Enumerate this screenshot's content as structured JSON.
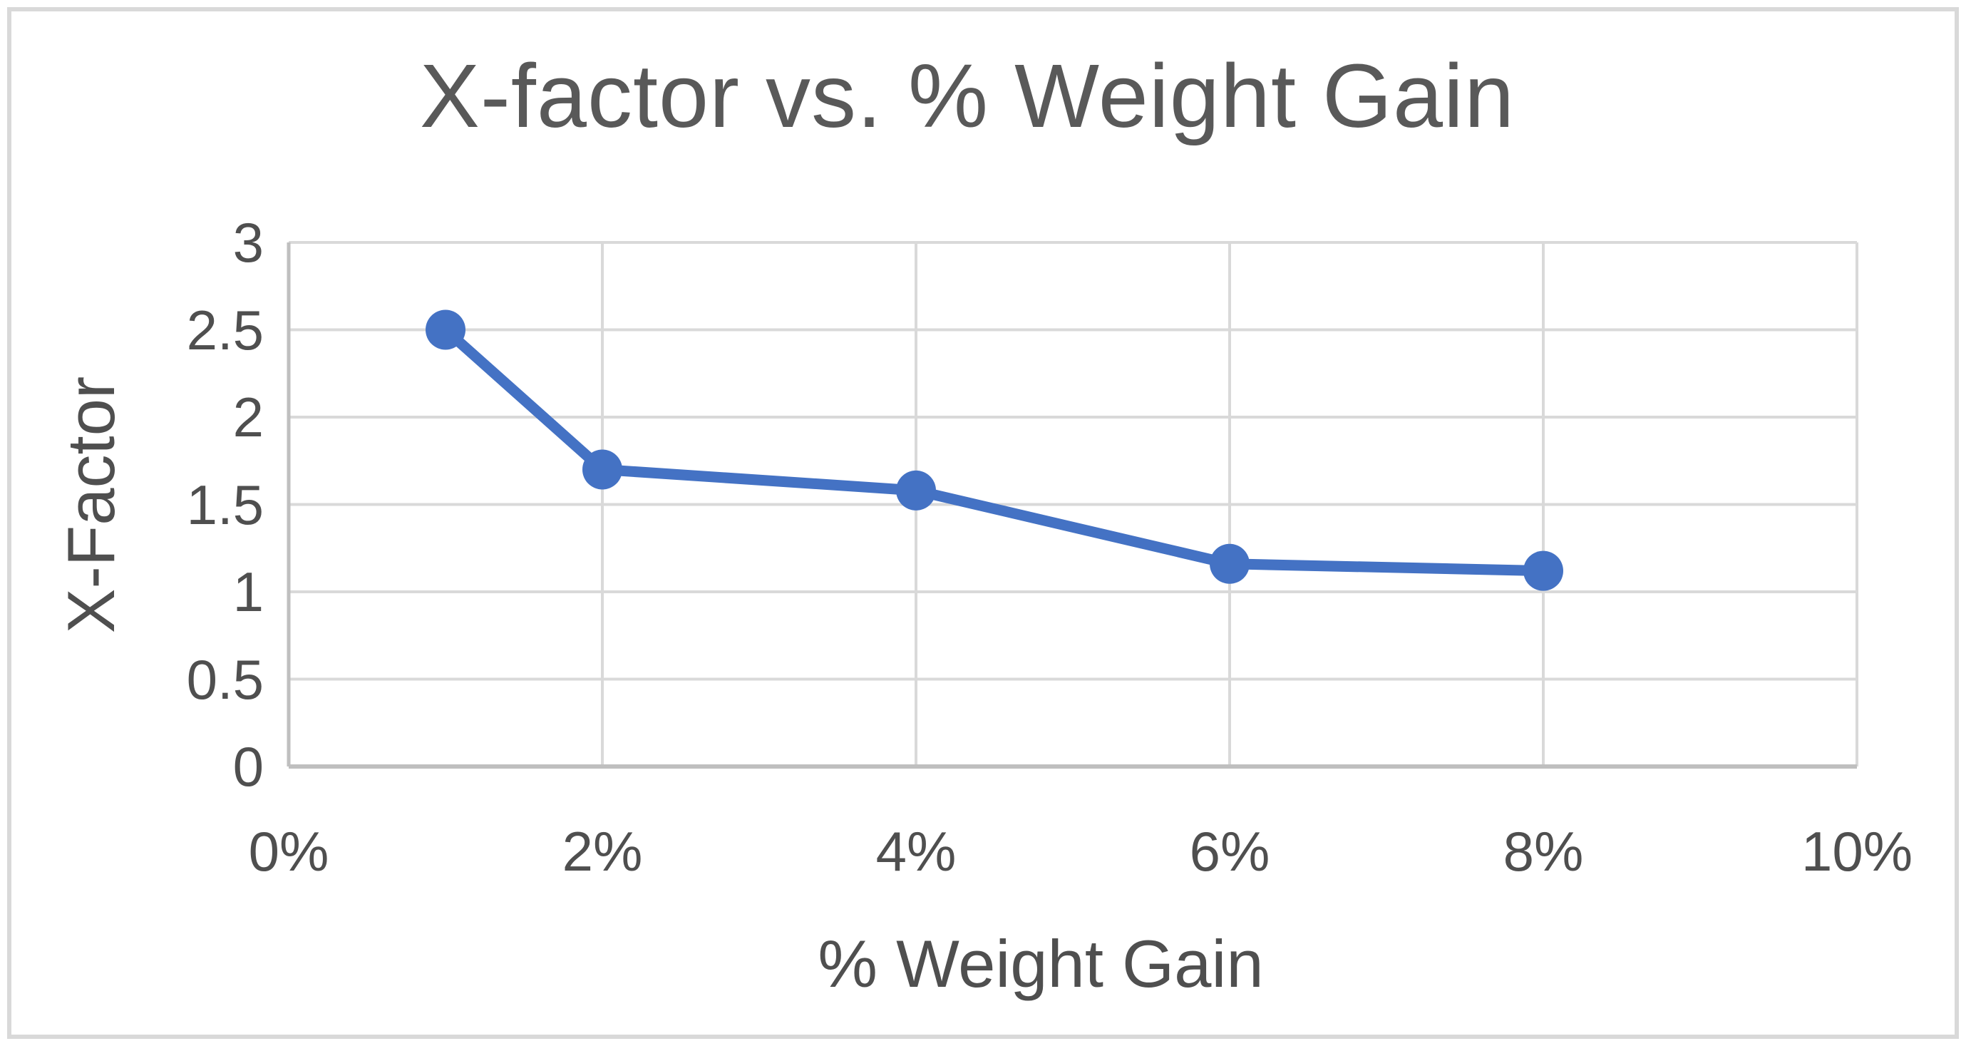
{
  "chart_data": {
    "type": "line",
    "title": "X-factor vs. % Weight Gain",
    "xlabel": "% Weight Gain",
    "ylabel": "X-Factor",
    "series": [
      {
        "name": "X-Factor",
        "x": [
          1,
          2,
          4,
          6,
          8
        ],
        "y": [
          2.5,
          1.7,
          1.58,
          1.16,
          1.12
        ]
      }
    ],
    "xlim": [
      0,
      10
    ],
    "ylim": [
      0,
      3
    ],
    "x_ticks": [
      0,
      2,
      4,
      6,
      8,
      10
    ],
    "x_tick_labels": [
      "0%",
      "2%",
      "4%",
      "6%",
      "8%",
      "10%"
    ],
    "y_ticks": [
      0,
      0.5,
      1,
      1.5,
      2,
      2.5,
      3
    ],
    "y_tick_labels": [
      "0",
      "0.5",
      "1",
      "1.5",
      "2",
      "2.5",
      "3"
    ],
    "grid": true,
    "legend": false,
    "marker": "circle",
    "colors": {
      "series": "#4472C4",
      "gridline": "#d9d9d9",
      "axis_line": "#bfbfbf",
      "title_text": "#595959",
      "label_text": "#4f4f4f",
      "background": "#ffffff",
      "frame_border": "#d9d9d9"
    }
  }
}
